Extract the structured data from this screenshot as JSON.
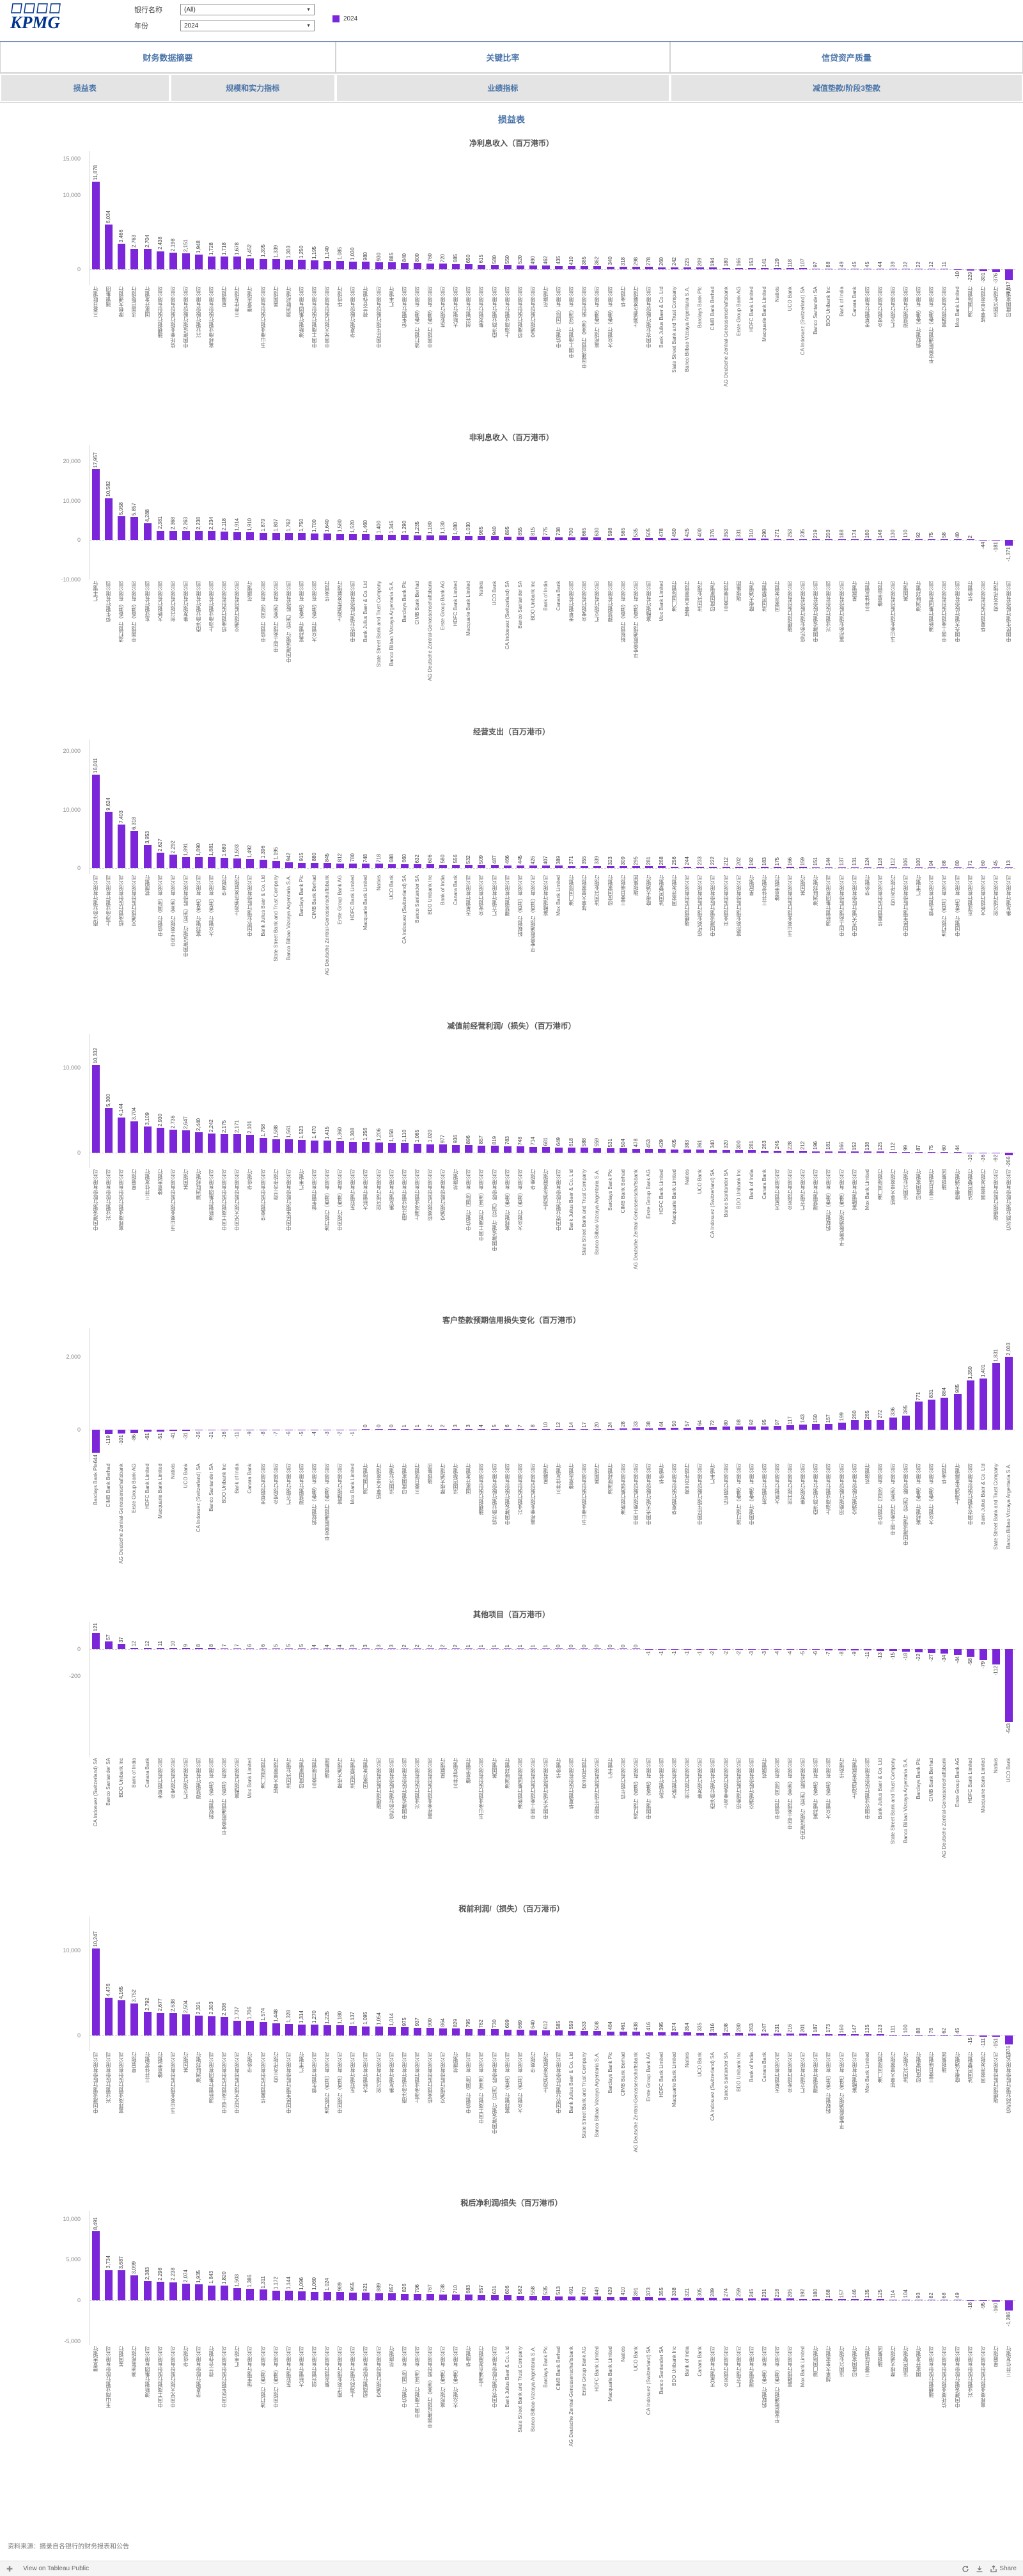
{
  "header": {
    "logo_text": "KPMG",
    "filters": [
      {
        "label": "银行名称",
        "value": "(All)"
      },
      {
        "label": "年份",
        "value": "2024"
      }
    ],
    "legend": {
      "label": "2024",
      "color": "#7B26D9"
    }
  },
  "tabs": {
    "primary": [
      {
        "label": "财务数据摘要"
      },
      {
        "label": "关键比率"
      },
      {
        "label": "信贷资产质量"
      }
    ],
    "secondary": [
      {
        "label": "损益表"
      },
      {
        "label": "规模和实力指标"
      },
      {
        "label": "业绩指标"
      },
      {
        "label": "减值垫款/阶段3垫款"
      }
    ]
  },
  "page_title": "损益表",
  "colors": {
    "bar": "#7B26D9",
    "accent": "#4a74a8",
    "logo_blue": "#00338D"
  },
  "footer": {
    "source": "资料来源：摘录自各银行的财务报表和公告",
    "tableau_bar": {
      "view_label": "View on Tableau Public",
      "share_label": "Share"
    }
  },
  "bank_pool": [
    "三菱日联银行",
    "瑞银集团",
    "摩根大通银行",
    "法国巴黎银行",
    "国家开发银行",
    "瑞穗银行股份有限公司",
    "信托商业银行股份有限公司",
    "中国建设银行股份有限公司",
    "兴业银行股份有限公司",
    "富邦商业银行股份有限公司",
    "星展银行",
    "三井住友银行",
    "德意志银行",
    "玉山商业银行股份有限公司",
    "美国银行",
    "澳洲联邦银行",
    "澳新银行集团有限公司",
    "中国工商银行股份有限公司",
    "中国光大银行股份有限公司",
    "华侨银行",
    "华夏银行股份有限公司",
    "荷兰合作银行",
    "中国民生银行股份有限公司",
    "汇丰银行",
    "恒生银行有限公司",
    "渣打银行（香港）有限公司",
    "中国银行（香港）有限公司",
    "东亚银行有限公司",
    "大新银行有限公司",
    "创兴银行有限公司",
    "集友银行有限公司",
    "南洋商业银行有限公司",
    "上海商业银行有限公司",
    "招商银行股份有限公司",
    "交通银行股份有限公司",
    "花旗银行",
    "中信银行（国际）有限公司",
    "中国工商银行（亚洲）有限公司",
    "中国建设银行（亚洲）股份有限公司",
    "富邦银行（香港）有限公司",
    "大众银行（香港）有限公司",
    "华商银行",
    "上海浦东发展银行",
    "中国农业银行股份有限公司",
    "Bank Julius Baer & Co. Ltd",
    "State Street Bank and Trust Company",
    "Banco Bilbao Vizcaya Argentaria S.A.",
    "Barclays Bank Plc",
    "CIMB Bank Berhad",
    "DZ Bank AG Deutsche Zentral-Genossenschaftsbank",
    "Erste Group Bank AG",
    "HDFC Bank Limited",
    "Macquarie Bank Limited",
    "Natixis",
    "UCO Bank",
    "CA Indosuez (Switzerland) SA",
    "Banco Santander SA",
    "BDO Unibank Inc",
    "Bank of India",
    "Canara Bank",
    "天星银行有限公司",
    "众安银行有限公司",
    "汇立银行有限公司",
    "理慧银行有限公司",
    "蚂蚁银行（香港）有限公司",
    "平安壹账通银行（香港）有限公司",
    "富融银行有限公司",
    "Mox Bank Limited",
    "澳门国际银行",
    "加拿大皇家银行",
    "法国兴业银行",
    "印度国家银行"
  ],
  "chart_data": [
    {
      "id": "net-interest-income",
      "type": "bar",
      "title": "净利息收入（百万港币）",
      "ylabel": "百万港币",
      "ymax": 16000,
      "ymin": -2200,
      "yticks": [
        {
          "v": 15000,
          "label": "15,000"
        },
        {
          "v": 10000,
          "label": "10,000"
        },
        {
          "v": 0,
          "label": "0"
        }
      ],
      "label_offset": 0,
      "values": [
        11878,
        6034,
        3466,
        2763,
        2704,
        2438,
        2198,
        2151,
        1948,
        1728,
        1718,
        1678,
        1452,
        1395,
        1339,
        1303,
        1250,
        1195,
        1140,
        1085,
        1030,
        980,
        930,
        885,
        840,
        800,
        760,
        720,
        685,
        650,
        615,
        580,
        550,
        520,
        490,
        462,
        435,
        410,
        385,
        362,
        340,
        318,
        298,
        278,
        260,
        242,
        225,
        209,
        194,
        180,
        166,
        153,
        141,
        129,
        118,
        107,
        97,
        88,
        49,
        45,
        45,
        44,
        39,
        32,
        22,
        12,
        11,
        -10,
        -229,
        -301,
        -376,
        -1517
      ]
    },
    {
      "id": "non-interest-income",
      "type": "bar",
      "title": "非利息收入（百万港币）",
      "ylabel": "百万港币",
      "ymax": 24000,
      "ymin": -10000,
      "yticks": [
        {
          "v": 20000,
          "label": "20,000"
        },
        {
          "v": 10000,
          "label": "10,000"
        },
        {
          "v": 0,
          "label": "0"
        },
        {
          "v": -10000,
          "label": "-10,000"
        }
      ],
      "label_offset": 23,
      "values": [
        17957,
        10582,
        5958,
        5857,
        4288,
        2381,
        2368,
        2263,
        2238,
        2234,
        2118,
        1914,
        1910,
        1879,
        1807,
        1762,
        1750,
        1700,
        1640,
        1580,
        1520,
        1460,
        1400,
        1345,
        1290,
        1235,
        1180,
        1130,
        1080,
        1030,
        985,
        940,
        895,
        855,
        815,
        775,
        738,
        700,
        665,
        630,
        598,
        565,
        535,
        505,
        478,
        450,
        425,
        400,
        376,
        353,
        331,
        310,
        290,
        271,
        253,
        235,
        219,
        203,
        188,
        174,
        160,
        148,
        130,
        110,
        92,
        75,
        58,
        40,
        2,
        -44,
        -181,
        -1371
      ]
    },
    {
      "id": "operating-expenses",
      "type": "bar",
      "title": "经营支出（百万港币）",
      "ylabel": "百万港币",
      "ymax": 22000,
      "ymin": -1000,
      "yticks": [
        {
          "v": 20000,
          "label": "20,000"
        },
        {
          "v": 10000,
          "label": "10,000"
        },
        {
          "v": 0,
          "label": "0"
        }
      ],
      "label_offset": 31,
      "values": [
        16011,
        9624,
        7403,
        6318,
        3953,
        2627,
        2292,
        1891,
        1890,
        1881,
        1689,
        1593,
        1492,
        1396,
        1195,
        942,
        915,
        880,
        845,
        812,
        780,
        748,
        718,
        688,
        660,
        632,
        606,
        580,
        556,
        532,
        509,
        487,
        466,
        445,
        426,
        407,
        389,
        371,
        355,
        339,
        323,
        309,
        295,
        281,
        268,
        256,
        244,
        233,
        222,
        212,
        202,
        192,
        183,
        175,
        166,
        159,
        151,
        144,
        137,
        131,
        124,
        118,
        112,
        106,
        100,
        94,
        88,
        80,
        71,
        60,
        45,
        13
      ]
    },
    {
      "id": "operating-profit-before-impairment",
      "type": "bar",
      "title": "减值前经营利润/（损失）（百万港币）",
      "ylabel": "百万港币",
      "ymax": 14000,
      "ymin": -1800,
      "yticks": [
        {
          "v": 10000,
          "label": "10,000"
        },
        {
          "v": 0,
          "label": "0"
        }
      ],
      "label_offset": 7,
      "values": [
        10332,
        5300,
        4144,
        3704,
        3109,
        2930,
        2736,
        2647,
        2440,
        2242,
        2175,
        2171,
        2101,
        1758,
        1588,
        1561,
        1523,
        1470,
        1415,
        1360,
        1308,
        1256,
        1206,
        1158,
        1110,
        1065,
        1020,
        977,
        936,
        896,
        857,
        819,
        783,
        748,
        714,
        681,
        649,
        618,
        588,
        559,
        531,
        504,
        478,
        453,
        429,
        405,
        383,
        361,
        340,
        320,
        300,
        281,
        263,
        245,
        228,
        212,
        196,
        181,
        166,
        152,
        138,
        125,
        112,
        99,
        87,
        75,
        60,
        44,
        -10,
        -36,
        -92,
        -266
      ]
    },
    {
      "id": "expected-credit-loss-change",
      "type": "bar",
      "title": "客户垫款预期信用损失变化（百万港币）",
      "ylabel": "百万港币",
      "ymax": 2800,
      "ymin": -900,
      "yticks": [
        {
          "v": 2000,
          "label": "2,000"
        },
        {
          "v": 0,
          "label": "0"
        }
      ],
      "label_offset": 47,
      "values": [
        -644,
        -119,
        -101,
        -86,
        -61,
        -51,
        -41,
        -31,
        -26,
        -21,
        -16,
        -11,
        -9,
        -8,
        -7,
        -6,
        -5,
        -4,
        -3,
        -2,
        -1,
        0,
        0,
        0,
        1,
        1,
        2,
        2,
        3,
        3,
        4,
        5,
        6,
        7,
        8,
        10,
        12,
        14,
        17,
        20,
        24,
        28,
        33,
        38,
        44,
        50,
        57,
        64,
        72,
        80,
        88,
        92,
        95,
        97,
        117,
        143,
        150,
        157,
        199,
        260,
        265,
        272,
        336,
        395,
        771,
        831,
        884,
        985,
        1350,
        1401,
        1831,
        2003
      ]
    },
    {
      "id": "other-items",
      "type": "bar",
      "title": "其他项目（百万港币）",
      "ylabel": "百万港币",
      "ymax": 200,
      "ymin": -800,
      "yticks": [
        {
          "v": 0,
          "label": "0"
        },
        {
          "v": -200,
          "label": "-200"
        }
      ],
      "label_offset": 55,
      "values": [
        121,
        57,
        37,
        12,
        12,
        11,
        10,
        9,
        8,
        8,
        7,
        7,
        6,
        6,
        5,
        5,
        5,
        4,
        4,
        4,
        3,
        3,
        3,
        3,
        2,
        2,
        2,
        2,
        2,
        1,
        1,
        1,
        1,
        1,
        1,
        1,
        0,
        0,
        0,
        0,
        0,
        0,
        0,
        -1,
        -1,
        -1,
        -1,
        -1,
        -2,
        -2,
        -2,
        -3,
        -3,
        -4,
        -4,
        -5,
        -6,
        -7,
        -8,
        -9,
        -11,
        -13,
        -15,
        -18,
        -22,
        -27,
        -34,
        -44,
        -58,
        -79,
        -112,
        -543
      ]
    },
    {
      "id": "profit-before-tax",
      "type": "bar",
      "title": "税前利润/（损失）（百万港币）",
      "ylabel": "百万港币",
      "ymax": 14000,
      "ymin": -1800,
      "yticks": [
        {
          "v": 10000,
          "label": "10,000"
        },
        {
          "v": 0,
          "label": "0"
        }
      ],
      "label_offset": 7,
      "values": [
        10247,
        4476,
        4165,
        3752,
        2792,
        2677,
        2638,
        2504,
        2321,
        2303,
        2208,
        1737,
        1706,
        1574,
        1448,
        1328,
        1314,
        1270,
        1225,
        1180,
        1137,
        1095,
        1054,
        1014,
        975,
        937,
        900,
        864,
        829,
        795,
        762,
        730,
        699,
        669,
        640,
        612,
        585,
        559,
        533,
        508,
        484,
        461,
        438,
        416,
        395,
        374,
        354,
        335,
        316,
        298,
        280,
        263,
        247,
        231,
        216,
        201,
        187,
        173,
        160,
        147,
        135,
        123,
        111,
        100,
        88,
        76,
        62,
        45,
        -15,
        -111,
        -151,
        -1076
      ]
    },
    {
      "id": "profit-after-tax",
      "type": "bar",
      "title": "税后净利润/损失（百万港币）",
      "ylabel": "百万港币",
      "ymax": 11000,
      "ymin": -5500,
      "yticks": [
        {
          "v": 10000,
          "label": "10,000"
        },
        {
          "v": 5000,
          "label": "5,000"
        },
        {
          "v": 0,
          "label": "0"
        },
        {
          "v": -5000,
          "label": "-5,000"
        }
      ],
      "label_offset": 12,
      "values": [
        8491,
        3734,
        3687,
        3099,
        2383,
        2298,
        2238,
        2074,
        1935,
        1843,
        1820,
        1503,
        1386,
        1311,
        1172,
        1144,
        1096,
        1060,
        1024,
        989,
        955,
        921,
        889,
        857,
        826,
        796,
        767,
        738,
        710,
        683,
        657,
        631,
        606,
        582,
        558,
        535,
        513,
        491,
        470,
        449,
        429,
        410,
        391,
        373,
        355,
        338,
        321,
        305,
        289,
        274,
        259,
        245,
        231,
        218,
        205,
        192,
        180,
        168,
        157,
        146,
        135,
        125,
        114,
        104,
        93,
        82,
        68,
        49,
        -18,
        -95,
        -160,
        -1286
      ]
    }
  ]
}
